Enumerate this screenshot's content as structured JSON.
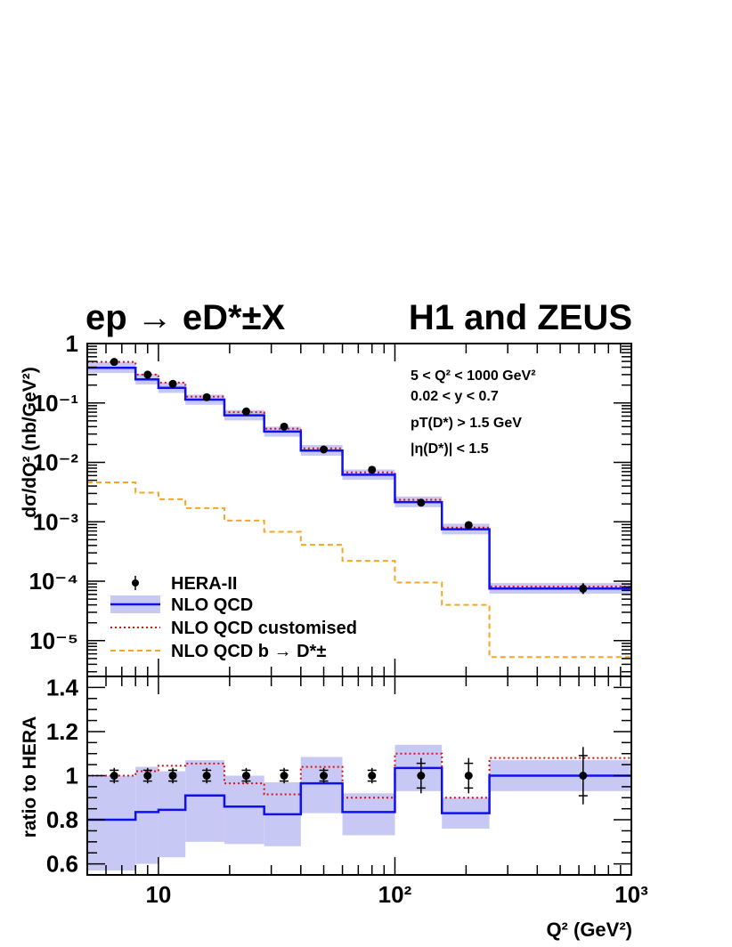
{
  "chart_data": {
    "type": "step-line with ratio panel",
    "title_left": "ep → eD*±X",
    "title_right": "H1 and ZEUS",
    "xlabel": "Q² (GeV²)",
    "ylabel_top": "dσ/dQ² (nb/GeV²)",
    "ylabel_bottom": "ratio to HERA",
    "x_scale": "log",
    "y_scale_top": "log",
    "xlim": [
      5,
      1000
    ],
    "ylim_top": [
      2.5e-06,
      1
    ],
    "ylim_bottom": [
      0.55,
      1.45
    ],
    "x_tick_labels": [
      "10",
      "10²",
      "10³"
    ],
    "y_tick_labels_top": [
      "1",
      "10⁻¹",
      "10⁻²",
      "10⁻³",
      "10⁻⁴",
      "10⁻⁵"
    ],
    "y_tick_labels_bottom": [
      "1.4",
      "1.2",
      "1",
      "0.8",
      "0.6"
    ],
    "cuts": [
      "5 < Q² < 1000 GeV²",
      "0.02 < y < 0.7",
      "pT(D*) > 1.5 GeV",
      "|η(D*)| < 1.5"
    ],
    "bin_edges": [
      5,
      8,
      10,
      13,
      19,
      28,
      40,
      60,
      100,
      158,
      251,
      1000
    ],
    "series": [
      {
        "name": "HERA-II",
        "kind": "points",
        "x": [
          6.5,
          9,
          11.5,
          16,
          23.5,
          34,
          50,
          80,
          129,
          205,
          625
        ],
        "y": [
          0.49,
          0.3,
          0.21,
          0.125,
          0.072,
          0.04,
          0.0165,
          0.0075,
          0.0021,
          0.00088,
          7.5e-05
        ],
        "ratio": [
          1,
          1,
          1,
          1,
          1,
          1,
          1,
          1,
          1,
          1,
          1
        ],
        "ratio_err": [
          0.035,
          0.035,
          0.035,
          0.035,
          0.035,
          0.035,
          0.035,
          0.035,
          0.08,
          0.08,
          0.13
        ]
      },
      {
        "name": "NLO QCD",
        "kind": "step",
        "values": [
          0.39,
          0.25,
          0.18,
          0.114,
          0.062,
          0.033,
          0.0158,
          0.0062,
          0.00215,
          0.00075,
          7.55e-05
        ],
        "ratio": [
          0.8,
          0.835,
          0.845,
          0.91,
          0.86,
          0.825,
          0.965,
          0.835,
          1.035,
          0.83,
          1.0
        ],
        "band_top_rel": [
          0.85,
          0.8,
          0.75,
          0.7,
          0.75,
          0.7,
          0.8,
          0.75,
          0.8,
          0.8,
          0.78
        ],
        "ratio_band": [
          [
            0.57,
            1.0
          ],
          [
            0.6,
            1.04
          ],
          [
            0.63,
            1.02
          ],
          [
            0.7,
            1.07
          ],
          [
            0.69,
            1.0
          ],
          [
            0.68,
            0.97
          ],
          [
            0.83,
            1.085
          ],
          [
            0.73,
            0.92
          ],
          [
            0.93,
            1.14
          ],
          [
            0.76,
            0.9
          ],
          [
            0.93,
            1.07
          ]
        ]
      },
      {
        "name": "NLO QCD customised",
        "kind": "step",
        "values": [
          0.49,
          0.3,
          0.22,
          0.128,
          0.07,
          0.037,
          0.0172,
          0.0068,
          0.00235,
          0.0008,
          8.15e-05
        ],
        "ratio": [
          1.0,
          1.02,
          1.045,
          1.055,
          0.965,
          0.915,
          1.04,
          0.9,
          1.1,
          0.9,
          1.08
        ]
      },
      {
        "name": "NLO QCD b → D*±",
        "kind": "step",
        "values": [
          0.0046,
          0.0031,
          0.0024,
          0.0017,
          0.00105,
          0.00068,
          0.00041,
          0.00022,
          9.5e-05,
          4e-05,
          5.3e-06
        ]
      }
    ],
    "colors": {
      "data": "#000000",
      "nlo": "#1010ee",
      "band": "#c8c8f5",
      "customised": "#dd1111",
      "b_to_dstar": "#f5a623"
    },
    "legend_position": "lower-left"
  }
}
